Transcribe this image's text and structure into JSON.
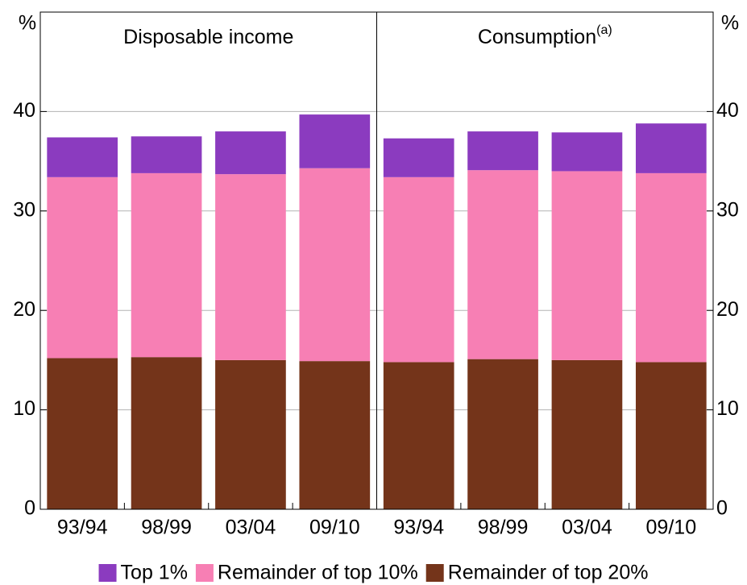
{
  "chart_data": {
    "type": "bar",
    "stacked": true,
    "y_unit": "%",
    "ylim": [
      0,
      50
    ],
    "yticks": [
      0,
      10,
      20,
      30,
      40
    ],
    "grid": true,
    "panels": [
      {
        "title": "Disposable income"
      },
      {
        "title": "Consumption",
        "title_superscript": "(a)"
      }
    ],
    "categories": [
      "93/94",
      "98/99",
      "03/04",
      "09/10",
      "93/94",
      "98/99",
      "03/04",
      "09/10"
    ],
    "series": [
      {
        "name": "Top 1%",
        "color": "#8b3bbf",
        "values": [
          4.0,
          3.7,
          4.3,
          5.4,
          3.9,
          3.9,
          3.9,
          5.0
        ]
      },
      {
        "name": "Remainder of top 10%",
        "color": "#f77fb4",
        "values": [
          18.2,
          18.5,
          18.7,
          19.4,
          18.6,
          19.0,
          19.0,
          19.0
        ]
      },
      {
        "name": "Remainder of top 20%",
        "color": "#74341a",
        "values": [
          15.2,
          15.3,
          15.0,
          14.9,
          14.8,
          15.1,
          15.0,
          14.8
        ]
      }
    ]
  }
}
